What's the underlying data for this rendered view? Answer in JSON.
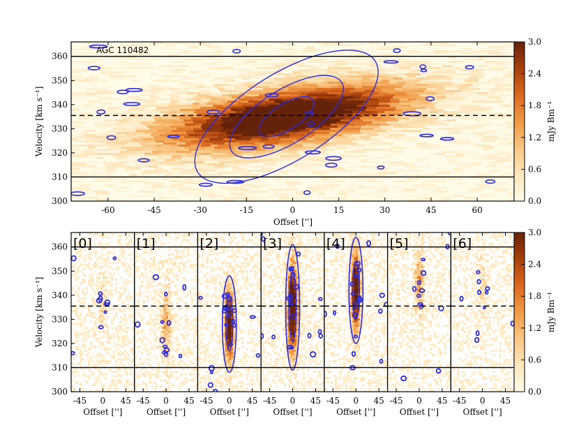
{
  "colors": {
    "colormap": [
      "#fffbe9",
      "#fde7bd",
      "#f9c785",
      "#ef9a45",
      "#d9691f",
      "#a7410c",
      "#64220a"
    ],
    "contour": "#2b2bdc",
    "frame": "#000000"
  },
  "chart_data": [
    {
      "type": "heatmap",
      "name": "top-pv-diagram",
      "label": "AGC 110482",
      "xlabel": "Offset ['']",
      "ylabel": "Velocity [km s⁻¹]",
      "xlim": [
        -72,
        72
      ],
      "ylim": [
        300,
        366
      ],
      "xticks": [
        -60,
        -45,
        -30,
        -15,
        0,
        15,
        30,
        45,
        60
      ],
      "yticks": [
        300,
        310,
        320,
        330,
        340,
        350,
        360
      ],
      "hlines": [
        {
          "y": 360,
          "style": "solid"
        },
        {
          "y": 310,
          "style": "solid"
        },
        {
          "y": 335.5,
          "style": "dashed"
        }
      ],
      "emission": {
        "x0": -2,
        "y0": 335,
        "slope_kms_per_arcsec": 0.62,
        "sigma_offset": 22,
        "sigma_velocity": 9,
        "peak": 3.0
      },
      "colorbar": {
        "label": "mJy Bm⁻¹",
        "range": [
          0.0,
          3.0
        ],
        "ticks": [
          "0.0",
          "0.6",
          "1.2",
          "1.8",
          "2.4",
          "3.0"
        ]
      }
    },
    {
      "type": "heatmap",
      "name": "bottom-slice-panels",
      "xlabel": "Offset ['']",
      "ylabel": "Velocity [km s⁻¹]",
      "xlim": [
        -62,
        62
      ],
      "ylim": [
        300,
        366
      ],
      "xticks": [
        -45,
        0,
        45
      ],
      "yticks": [
        300,
        310,
        320,
        330,
        340,
        350,
        360
      ],
      "hlines": [
        {
          "y": 360,
          "style": "solid"
        },
        {
          "y": 310,
          "style": "solid"
        },
        {
          "y": 335.5,
          "style": "dashed"
        }
      ],
      "panels": [
        {
          "label": "[0]",
          "emission": {
            "v0": 335,
            "sv": 8,
            "sx": 6,
            "peak": 0.5
          }
        },
        {
          "label": "[1]",
          "emission": {
            "v0": 328,
            "sv": 10,
            "sx": 6,
            "peak": 1.1
          }
        },
        {
          "label": "[2]",
          "emission": {
            "v0": 328,
            "sv": 10,
            "sx": 6,
            "peak": 3.0
          }
        },
        {
          "label": "[3]",
          "emission": {
            "v0": 335,
            "sv": 13,
            "sx": 7,
            "peak": 3.0
          }
        },
        {
          "label": "[4]",
          "emission": {
            "v0": 342,
            "sv": 11,
            "sx": 6,
            "peak": 3.0
          }
        },
        {
          "label": "[5]",
          "emission": {
            "v0": 345,
            "sv": 9,
            "sx": 6,
            "peak": 1.2
          }
        },
        {
          "label": "[6]",
          "emission": {
            "v0": 345,
            "sv": 8,
            "sx": 6,
            "peak": 0.5
          }
        }
      ],
      "colorbar": {
        "label": "mJy Bm⁻¹",
        "range": [
          0.0,
          3.0
        ],
        "ticks": [
          "0.0",
          "0.6",
          "1.2",
          "1.8",
          "2.4",
          "3.0"
        ]
      }
    }
  ]
}
